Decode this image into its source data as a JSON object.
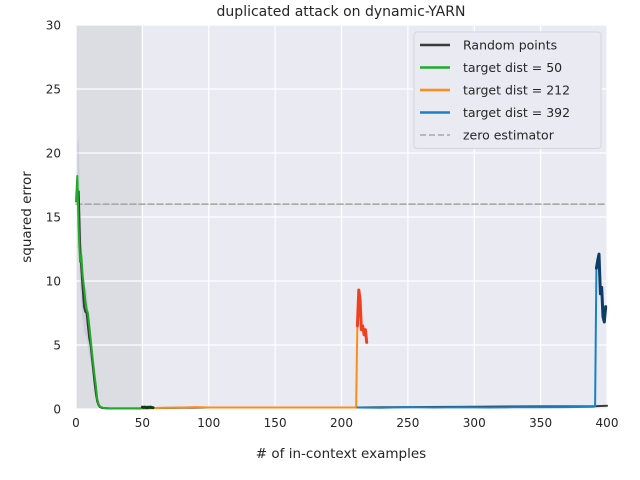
{
  "chart_data": {
    "type": "line",
    "title": "duplicated attack on dynamic-YARN",
    "xlabel": "# of in-context examples",
    "ylabel": "squared error",
    "xlim": [
      0,
      400
    ],
    "ylim": [
      0,
      30
    ],
    "xticks": [
      0,
      50,
      100,
      150,
      200,
      250,
      300,
      350,
      400
    ],
    "yticks": [
      0,
      5,
      10,
      15,
      20,
      25,
      30
    ],
    "grid": true,
    "legend_position": "top-right",
    "shaded_region": {
      "x_start": 0,
      "x_end": 50,
      "color": "#dcdde3"
    },
    "colors": {
      "plot_background": "#eaeaf2",
      "grid": "#ffffff",
      "random": "#3a3a3a",
      "target50": "#1faa28",
      "target212": "#ff8c1a",
      "target392": "#1a80c8",
      "zero": "#a8a8a8",
      "attack50": "#0d3d14",
      "attack212": "#f04020",
      "attack392": "#0b3d66"
    },
    "series": [
      {
        "name": "Random points",
        "color": "#3a3a3a",
        "style": "solid",
        "x": [
          1,
          2,
          3,
          4,
          5,
          6,
          7,
          8,
          9,
          10,
          11,
          12,
          13,
          14,
          15,
          16,
          17,
          18,
          20,
          25,
          30,
          40,
          50,
          60,
          80,
          100,
          150,
          200,
          210,
          250,
          300,
          350,
          390,
          400
        ],
        "y": [
          16.5,
          17,
          13,
          11,
          9.5,
          8,
          7.6,
          7.5,
          6.5,
          5.5,
          5,
          4,
          3,
          2,
          1.2,
          0.6,
          0.3,
          0.15,
          0.08,
          0.05,
          0.05,
          0.05,
          0.05,
          0.08,
          0.1,
          0.12,
          0.12,
          0.12,
          0.12,
          0.15,
          0.18,
          0.2,
          0.22,
          0.25
        ]
      },
      {
        "name": "target dist = 50",
        "color": "#1faa28",
        "style": "solid",
        "x": [
          0,
          1,
          2,
          3,
          4,
          5,
          6,
          7,
          8,
          9,
          10,
          11,
          12,
          13,
          14,
          15,
          16,
          17,
          18,
          20,
          22,
          25,
          30,
          35,
          40,
          45,
          50
        ],
        "y": [
          16.2,
          18.2,
          14,
          11.5,
          12,
          10.5,
          9.5,
          8.5,
          7.8,
          7.5,
          6.5,
          5.5,
          4.5,
          3.5,
          2.6,
          1.8,
          0.8,
          0.4,
          0.2,
          0.1,
          0.06,
          0.05,
          0.04,
          0.04,
          0.04,
          0.04,
          0.04
        ]
      },
      {
        "name": "target dist = 212",
        "color": "#ff8c1a",
        "style": "solid",
        "x": [
          50,
          60,
          70,
          80,
          90,
          100,
          120,
          140,
          160,
          180,
          200,
          211,
          212
        ],
        "y": [
          0.05,
          0.08,
          0.1,
          0.12,
          0.15,
          0.12,
          0.12,
          0.12,
          0.12,
          0.12,
          0.12,
          0.12,
          6.8
        ]
      },
      {
        "name": "target dist = 392",
        "color": "#1a80c8",
        "style": "solid",
        "x": [
          212,
          230,
          250,
          270,
          290,
          310,
          330,
          350,
          370,
          390,
          391,
          392
        ],
        "y": [
          0.12,
          0.1,
          0.15,
          0.12,
          0.14,
          0.12,
          0.13,
          0.14,
          0.15,
          0.18,
          0.2,
          11
        ]
      },
      {
        "name": "zero estimator",
        "color": "#a8a8a8",
        "style": "dashed",
        "x": [
          0,
          400
        ],
        "y": [
          16,
          16
        ]
      }
    ],
    "attack_segments": [
      {
        "color": "#0d3d14",
        "x": [
          50,
          51,
          52,
          53,
          54,
          55,
          56,
          57,
          58
        ],
        "y": [
          0.15,
          0.12,
          0.15,
          0.1,
          0.14,
          0.12,
          0.15,
          0.12,
          0.1
        ]
      },
      {
        "color": "#f04020",
        "x": [
          212,
          213,
          214,
          215,
          216,
          217,
          218,
          219
        ],
        "y": [
          6.5,
          9.3,
          8.5,
          6.2,
          6.5,
          5.8,
          6.2,
          5.2
        ]
      },
      {
        "color": "#0b3d66",
        "x": [
          392,
          393,
          394,
          395,
          396,
          397,
          398,
          399
        ],
        "y": [
          11,
          11.6,
          12.1,
          9,
          9.5,
          7.2,
          6.8,
          8
        ]
      }
    ]
  }
}
